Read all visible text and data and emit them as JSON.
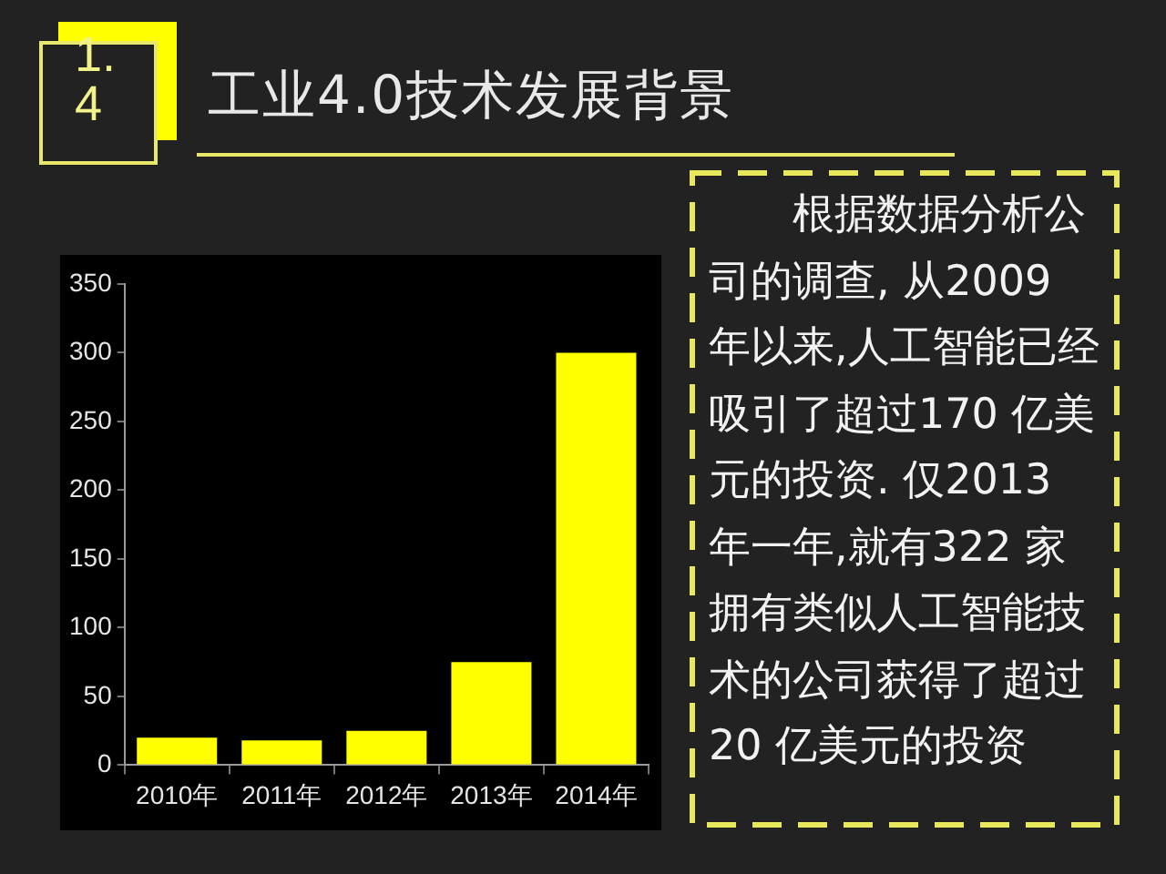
{
  "chart_data": {
    "type": "bar",
    "title": "工业4.0技术发展背景",
    "categories": [
      "2010年",
      "2011年",
      "2012年",
      "2013年",
      "2014年"
    ],
    "values": [
      20,
      18,
      25,
      75,
      300
    ],
    "color": "#ffff00",
    "ylim": [
      0,
      350
    ],
    "yticks": [
      0,
      50,
      100,
      150,
      200,
      250,
      300,
      350
    ],
    "annotations": [
      "1.4",
      "根据数据分析公司的调查, 从2009 年以来,人工智能已经吸引了超过170 亿美元的投资. 仅2013 年一年,就有322 家拥有类似人工智能技术的公司获得了超过20 亿美元的投资"
    ]
  }
}
